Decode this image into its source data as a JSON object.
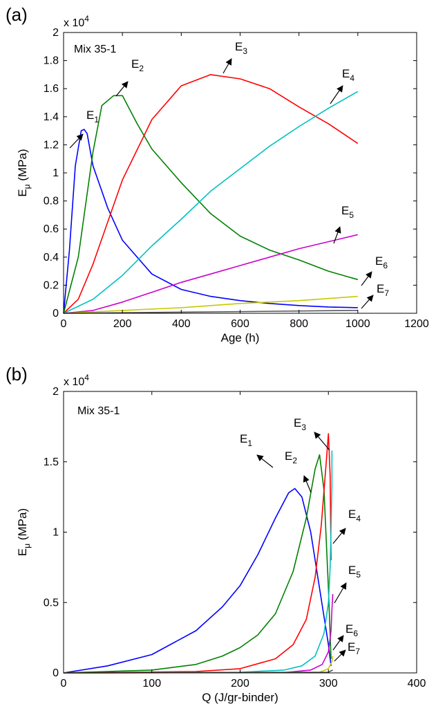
{
  "chart_data": [
    {
      "type": "line",
      "panel_label": "(a)",
      "annotation": "Mix 35-1",
      "multiplier": {
        "base": "x 10",
        "exp": "4"
      },
      "xlabel": "Age (h)",
      "ylabel": {
        "main": "E",
        "sub": "μ",
        "rest": " (MPa)"
      },
      "xlim": [
        0,
        1200
      ],
      "ylim": [
        0,
        20000
      ],
      "xticks": [
        0,
        200,
        400,
        600,
        800,
        1000,
        1200
      ],
      "yticks": [
        0,
        0.2,
        0.4,
        0.6,
        0.8,
        1,
        1.2,
        1.4,
        1.6,
        1.8,
        2
      ],
      "ytick_scale": 10000,
      "series": [
        {
          "name": "E1",
          "label_main": "E",
          "label_sub": "1",
          "color": "#0000ff",
          "x": [
            0,
            20,
            40,
            60,
            70,
            80,
            100,
            150,
            200,
            300,
            400,
            500,
            600,
            700,
            800,
            900,
            1000
          ],
          "y": [
            0,
            4500,
            10500,
            13000,
            13100,
            12800,
            10500,
            7500,
            5200,
            2800,
            1700,
            1200,
            900,
            700,
            550,
            450,
            400
          ]
        },
        {
          "name": "E2",
          "label_main": "E",
          "label_sub": "2",
          "color": "#008000",
          "x": [
            0,
            50,
            100,
            130,
            170,
            200,
            250,
            300,
            400,
            500,
            600,
            700,
            800,
            900,
            1000
          ],
          "y": [
            0,
            4000,
            11500,
            14800,
            15500,
            15500,
            13500,
            11700,
            9300,
            7100,
            5500,
            4500,
            3800,
            3000,
            2400
          ]
        },
        {
          "name": "E3",
          "label_main": "E",
          "label_sub": "3",
          "color": "#ff0000",
          "x": [
            0,
            50,
            100,
            150,
            200,
            300,
            400,
            500,
            600,
            700,
            800,
            900,
            1000
          ],
          "y": [
            0,
            1000,
            3500,
            6500,
            9500,
            13800,
            16200,
            17000,
            16700,
            16000,
            14700,
            13500,
            12100
          ]
        },
        {
          "name": "E4",
          "label_main": "E",
          "label_sub": "4",
          "color": "#00c0c0",
          "x": [
            0,
            100,
            200,
            300,
            400,
            500,
            600,
            700,
            800,
            900,
            1000
          ],
          "y": [
            0,
            1000,
            2700,
            4800,
            6700,
            8700,
            10300,
            11900,
            13300,
            14600,
            15800
          ]
        },
        {
          "name": "E5",
          "label_main": "E",
          "label_sub": "5",
          "color": "#cc00cc",
          "x": [
            0,
            100,
            200,
            300,
            400,
            500,
            600,
            700,
            800,
            900,
            1000
          ],
          "y": [
            0,
            200,
            800,
            1500,
            2200,
            2800,
            3400,
            4000,
            4600,
            5100,
            5600
          ]
        },
        {
          "name": "E6",
          "label_main": "E",
          "label_sub": "6",
          "color": "#c8c800",
          "x": [
            0,
            200,
            400,
            600,
            800,
            1000
          ],
          "y": [
            0,
            200,
            400,
            700,
            900,
            1200
          ]
        },
        {
          "name": "E7",
          "label_main": "E",
          "label_sub": "7",
          "color": "#555555",
          "x": [
            0,
            500,
            1000
          ],
          "y": [
            0,
            100,
            200
          ]
        }
      ]
    },
    {
      "type": "line",
      "panel_label": "(b)",
      "annotation": "Mix 35-1",
      "multiplier": {
        "base": "x 10",
        "exp": "4"
      },
      "xlabel": "Q (J/gr-binder)",
      "ylabel": {
        "main": "E",
        "sub": "μ",
        "rest": " (MPa)"
      },
      "xlim": [
        0,
        400
      ],
      "ylim": [
        0,
        20000
      ],
      "xticks": [
        0,
        100,
        200,
        300,
        400
      ],
      "yticks": [
        0,
        0.5,
        1,
        1.5,
        2
      ],
      "ytick_scale": 10000,
      "series": [
        {
          "name": "E1",
          "label_main": "E",
          "label_sub": "1",
          "color": "#0000ff",
          "x": [
            0,
            50,
            100,
            150,
            180,
            200,
            220,
            240,
            255,
            262,
            270,
            280,
            290,
            300,
            303
          ],
          "y": [
            0,
            500,
            1300,
            3000,
            4700,
            6200,
            8400,
            11000,
            12800,
            13100,
            12500,
            10000,
            6000,
            2000,
            500
          ]
        },
        {
          "name": "E2",
          "label_main": "E",
          "label_sub": "2",
          "color": "#008000",
          "x": [
            0,
            100,
            150,
            180,
            200,
            220,
            240,
            260,
            275,
            285,
            290,
            295,
            300,
            303
          ],
          "y": [
            0,
            200,
            600,
            1200,
            1800,
            2700,
            4200,
            7200,
            11000,
            14500,
            15500,
            13000,
            6000,
            1000
          ]
        },
        {
          "name": "E3",
          "label_main": "E",
          "label_sub": "3",
          "color": "#ff0000",
          "x": [
            0,
            150,
            200,
            240,
            260,
            275,
            285,
            292,
            297,
            300,
            302,
            303
          ],
          "y": [
            0,
            100,
            300,
            1000,
            2000,
            3800,
            6800,
            10500,
            14500,
            17000,
            14000,
            8000
          ]
        },
        {
          "name": "E4",
          "label_main": "E",
          "label_sub": "4",
          "color": "#00c0c0",
          "x": [
            0,
            200,
            250,
            270,
            285,
            295,
            300,
            302,
            303,
            304,
            304
          ],
          "y": [
            0,
            50,
            200,
            500,
            1200,
            2800,
            5000,
            7500,
            10300,
            13300,
            15800
          ]
        },
        {
          "name": "E5",
          "label_main": "E",
          "label_sub": "5",
          "color": "#cc00cc",
          "x": [
            0,
            250,
            280,
            293,
            300,
            303,
            304,
            305
          ],
          "y": [
            0,
            30,
            200,
            600,
            1500,
            3000,
            4500,
            5600
          ]
        },
        {
          "name": "E6",
          "label_main": "E",
          "label_sub": "6",
          "color": "#c8c800",
          "x": [
            0,
            290,
            300,
            304,
            305
          ],
          "y": [
            0,
            50,
            300,
            800,
            1200
          ]
        },
        {
          "name": "E7",
          "label_main": "E",
          "label_sub": "7",
          "color": "#555555",
          "x": [
            0,
            300,
            305
          ],
          "y": [
            0,
            50,
            200
          ]
        }
      ]
    }
  ]
}
